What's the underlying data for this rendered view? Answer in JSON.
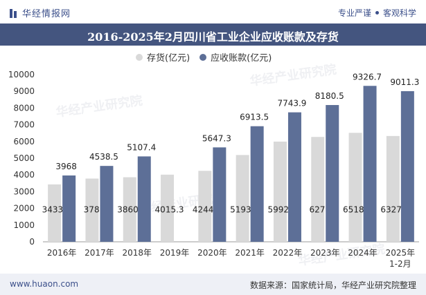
{
  "header": {
    "brand_name": "华经情报网",
    "tagline_left": "专业严谨",
    "tagline_right": "客观科学"
  },
  "watermark": "华经产业研究院",
  "footer": {
    "website": "www.huaon.com",
    "source": "数据来源：国家统计局，华经产业研究院整理"
  },
  "colors": {
    "title_bar": "#44557f",
    "inventory": "#d9d9d9",
    "receivables": "#5d6f97",
    "brand": "#3b4f8a"
  },
  "chart_data": {
    "type": "bar",
    "title": "2016-2025年2月四川省工业企业应收账款及存货",
    "categories": [
      "2016年",
      "2017年",
      "2018年",
      "2019年",
      "2020年",
      "2021年",
      "2022年",
      "2023年",
      "2024年",
      "2025年\n1-2月"
    ],
    "series": [
      {
        "name": "存货(亿元)",
        "values": [
          3433.3,
          3783,
          3860.8,
          4015.3,
          4244.3,
          5193.2,
          5992.6,
          6271,
          6518.1,
          6327.1
        ],
        "labels": [
          "3433.3",
          "3783",
          "3860.8",
          "4015.3",
          "4244.3",
          "5193.2",
          "5992.6",
          "6271",
          "6518.1",
          "6327.1"
        ]
      },
      {
        "name": "应收账款(亿元)",
        "values": [
          3968,
          4538.5,
          5107.4,
          null,
          5647.3,
          6913.5,
          7743.9,
          8180.5,
          9326.7,
          9011.3
        ],
        "labels": [
          "3968",
          "4538.5",
          "5107.4",
          "",
          "5647.3",
          "6913.5",
          "7743.9",
          "8180.5",
          "9326.7",
          "9011.3"
        ]
      }
    ],
    "ylim": [
      0,
      10000
    ],
    "yticks": [
      0,
      1000,
      2000,
      3000,
      4000,
      5000,
      6000,
      7000,
      8000,
      9000,
      10000
    ],
    "legend_position": "top-center",
    "grid": false
  }
}
